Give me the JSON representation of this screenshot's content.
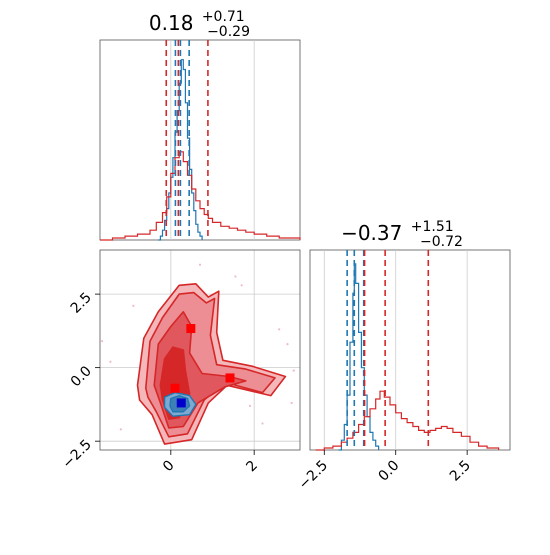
{
  "chart_data": [
    {
      "type": "histogram",
      "panel": "marginal-x",
      "title": {
        "main": "0.18",
        "sup": "+0.71",
        "sub": "−0.29"
      },
      "xlim": [
        -1.7,
        3.1
      ],
      "grid": true,
      "series": [
        {
          "color": "#1f77b4",
          "bins": [
            {
              "x": -0.3,
              "h": 0.0
            },
            {
              "x": -0.25,
              "h": 0.02
            },
            {
              "x": -0.2,
              "h": 0.05
            },
            {
              "x": -0.15,
              "h": 0.1
            },
            {
              "x": -0.1,
              "h": 0.16
            },
            {
              "x": -0.05,
              "h": 0.24
            },
            {
              "x": 0.0,
              "h": 0.32
            },
            {
              "x": 0.05,
              "h": 0.42
            },
            {
              "x": 0.1,
              "h": 0.55
            },
            {
              "x": 0.15,
              "h": 0.66
            },
            {
              "x": 0.2,
              "h": 0.8
            },
            {
              "x": 0.25,
              "h": 0.92
            },
            {
              "x": 0.3,
              "h": 0.87
            },
            {
              "x": 0.35,
              "h": 0.7
            },
            {
              "x": 0.4,
              "h": 0.52
            },
            {
              "x": 0.45,
              "h": 0.36
            },
            {
              "x": 0.5,
              "h": 0.24
            },
            {
              "x": 0.55,
              "h": 0.15
            },
            {
              "x": 0.6,
              "h": 0.08
            },
            {
              "x": 0.65,
              "h": 0.04
            },
            {
              "x": 0.7,
              "h": 0.02
            },
            {
              "x": 0.75,
              "h": 0.0
            }
          ],
          "quantiles": [
            0.11,
            0.23,
            0.44
          ]
        },
        {
          "color": "#d62728",
          "bins": [
            {
              "x": -1.7,
              "h": 0.0
            },
            {
              "x": -1.4,
              "h": 0.01
            },
            {
              "x": -1.1,
              "h": 0.02
            },
            {
              "x": -0.8,
              "h": 0.03
            },
            {
              "x": -0.5,
              "h": 0.05
            },
            {
              "x": -0.35,
              "h": 0.09
            },
            {
              "x": -0.2,
              "h": 0.14
            },
            {
              "x": -0.1,
              "h": 0.22
            },
            {
              "x": 0.0,
              "h": 0.34
            },
            {
              "x": 0.1,
              "h": 0.42
            },
            {
              "x": 0.2,
              "h": 0.45
            },
            {
              "x": 0.3,
              "h": 0.4
            },
            {
              "x": 0.4,
              "h": 0.33
            },
            {
              "x": 0.5,
              "h": 0.26
            },
            {
              "x": 0.6,
              "h": 0.2
            },
            {
              "x": 0.7,
              "h": 0.16
            },
            {
              "x": 0.8,
              "h": 0.13
            },
            {
              "x": 0.9,
              "h": 0.11
            },
            {
              "x": 1.0,
              "h": 0.09
            },
            {
              "x": 1.2,
              "h": 0.07
            },
            {
              "x": 1.4,
              "h": 0.06
            },
            {
              "x": 1.6,
              "h": 0.05
            },
            {
              "x": 1.8,
              "h": 0.04
            },
            {
              "x": 2.0,
              "h": 0.03
            },
            {
              "x": 2.3,
              "h": 0.02
            },
            {
              "x": 2.6,
              "h": 0.01
            },
            {
              "x": 3.1,
              "h": 0.0
            }
          ],
          "quantiles": [
            -0.11,
            0.18,
            0.89
          ]
        }
      ]
    },
    {
      "type": "histogram",
      "panel": "marginal-y",
      "title": {
        "main": "−0.37",
        "sup": "+1.51",
        "sub": "−0.72"
      },
      "xlim": [
        -3.0,
        4.0
      ],
      "xticks": [
        "−2.5",
        "0.0",
        "2.5"
      ],
      "xtick_values": [
        -2.5,
        0.0,
        2.5
      ],
      "grid": true,
      "series": [
        {
          "color": "#1f77b4",
          "bins": [
            {
              "x": -2.0,
              "h": 0.0
            },
            {
              "x": -1.9,
              "h": 0.05
            },
            {
              "x": -1.8,
              "h": 0.13
            },
            {
              "x": -1.7,
              "h": 0.28
            },
            {
              "x": -1.6,
              "h": 0.55
            },
            {
              "x": -1.5,
              "h": 0.8
            },
            {
              "x": -1.45,
              "h": 0.95
            },
            {
              "x": -1.4,
              "h": 0.85
            },
            {
              "x": -1.3,
              "h": 0.6
            },
            {
              "x": -1.2,
              "h": 0.42
            },
            {
              "x": -1.1,
              "h": 0.28
            },
            {
              "x": -1.0,
              "h": 0.17
            },
            {
              "x": -0.9,
              "h": 0.09
            },
            {
              "x": -0.8,
              "h": 0.05
            },
            {
              "x": -0.7,
              "h": 0.02
            },
            {
              "x": -0.6,
              "h": 0.0
            }
          ],
          "quantiles": [
            -1.7,
            -1.45,
            -1.12
          ]
        },
        {
          "color": "#d62728",
          "bins": [
            {
              "x": -2.8,
              "h": 0.0
            },
            {
              "x": -2.5,
              "h": 0.01
            },
            {
              "x": -2.2,
              "h": 0.02
            },
            {
              "x": -1.9,
              "h": 0.04
            },
            {
              "x": -1.7,
              "h": 0.06
            },
            {
              "x": -1.5,
              "h": 0.09
            },
            {
              "x": -1.3,
              "h": 0.13
            },
            {
              "x": -1.1,
              "h": 0.17
            },
            {
              "x": -0.9,
              "h": 0.21
            },
            {
              "x": -0.7,
              "h": 0.26
            },
            {
              "x": -0.55,
              "h": 0.3
            },
            {
              "x": -0.4,
              "h": 0.27
            },
            {
              "x": -0.2,
              "h": 0.23
            },
            {
              "x": 0.0,
              "h": 0.19
            },
            {
              "x": 0.2,
              "h": 0.16
            },
            {
              "x": 0.4,
              "h": 0.14
            },
            {
              "x": 0.6,
              "h": 0.12
            },
            {
              "x": 0.8,
              "h": 0.1
            },
            {
              "x": 1.0,
              "h": 0.09
            },
            {
              "x": 1.2,
              "h": 0.1
            },
            {
              "x": 1.4,
              "h": 0.11
            },
            {
              "x": 1.6,
              "h": 0.12
            },
            {
              "x": 1.8,
              "h": 0.11
            },
            {
              "x": 2.0,
              "h": 0.09
            },
            {
              "x": 2.3,
              "h": 0.07
            },
            {
              "x": 2.6,
              "h": 0.04
            },
            {
              "x": 2.9,
              "h": 0.02
            },
            {
              "x": 3.2,
              "h": 0.01
            },
            {
              "x": 3.6,
              "h": 0.0
            }
          ],
          "quantiles": [
            -1.09,
            -0.37,
            1.14
          ]
        }
      ]
    },
    {
      "type": "contour",
      "panel": "joint",
      "xlim": [
        -1.7,
        3.1
      ],
      "ylim": [
        -2.8,
        4.0
      ],
      "xticks": [
        "0",
        "2"
      ],
      "xtick_values": [
        0,
        2
      ],
      "yticks": [
        "−2.5",
        "0.0",
        "2.5"
      ],
      "ytick_values": [
        -2.5,
        0.0,
        2.5
      ],
      "grid": true,
      "red_contours": [
        [
          [
            -0.8,
            -0.6
          ],
          [
            -0.65,
            1.0
          ],
          [
            -0.3,
            1.9
          ],
          [
            0.2,
            2.8
          ],
          [
            0.6,
            2.85
          ],
          [
            0.9,
            2.4
          ],
          [
            1.15,
            2.6
          ],
          [
            1.1,
            1.2
          ],
          [
            1.25,
            0.25
          ],
          [
            1.95,
            0.05
          ],
          [
            2.75,
            -0.3
          ],
          [
            2.4,
            -0.95
          ],
          [
            1.35,
            -0.6
          ],
          [
            0.9,
            -1.2
          ],
          [
            0.5,
            -2.45
          ],
          [
            -0.15,
            -2.6
          ],
          [
            -0.45,
            -1.6
          ],
          [
            -0.75,
            -1.1
          ]
        ],
        [
          [
            -0.6,
            -0.7
          ],
          [
            -0.5,
            0.9
          ],
          [
            -0.2,
            1.7
          ],
          [
            0.2,
            2.5
          ],
          [
            0.55,
            2.55
          ],
          [
            0.85,
            2.2
          ],
          [
            1.05,
            2.35
          ],
          [
            0.95,
            1.1
          ],
          [
            1.1,
            0.1
          ],
          [
            1.8,
            -0.05
          ],
          [
            2.5,
            -0.35
          ],
          [
            2.2,
            -0.85
          ],
          [
            1.3,
            -0.5
          ],
          [
            0.8,
            -1.1
          ],
          [
            0.4,
            -2.25
          ],
          [
            -0.05,
            -2.35
          ],
          [
            -0.35,
            -1.5
          ],
          [
            -0.55,
            -1.0
          ]
        ],
        [
          [
            -0.4,
            -0.6
          ],
          [
            -0.3,
            0.8
          ],
          [
            0.0,
            1.4
          ],
          [
            0.3,
            1.9
          ],
          [
            0.5,
            1.4
          ],
          [
            0.45,
            0.5
          ],
          [
            0.75,
            -0.2
          ],
          [
            1.4,
            -0.3
          ],
          [
            1.8,
            -0.45
          ],
          [
            1.3,
            -0.65
          ],
          [
            0.65,
            -1.2
          ],
          [
            0.3,
            -2.0
          ],
          [
            -0.05,
            -2.05
          ],
          [
            -0.25,
            -1.2
          ]
        ],
        [
          [
            -0.25,
            -0.6
          ],
          [
            -0.15,
            0.3
          ],
          [
            0.05,
            0.7
          ],
          [
            0.3,
            0.6
          ],
          [
            0.35,
            -0.1
          ],
          [
            0.45,
            -0.9
          ],
          [
            0.2,
            -1.7
          ],
          [
            -0.05,
            -1.75
          ],
          [
            -0.2,
            -1.1
          ]
        ]
      ],
      "blue_contours": [
        [
          [
            -0.15,
            -1.0
          ],
          [
            0.1,
            -0.85
          ],
          [
            0.45,
            -0.95
          ],
          [
            0.6,
            -1.25
          ],
          [
            0.45,
            -1.6
          ],
          [
            0.05,
            -1.65
          ],
          [
            -0.15,
            -1.35
          ]
        ],
        [
          [
            0.0,
            -1.05
          ],
          [
            0.2,
            -0.95
          ],
          [
            0.4,
            -1.05
          ],
          [
            0.45,
            -1.3
          ],
          [
            0.3,
            -1.5
          ],
          [
            0.05,
            -1.5
          ],
          [
            -0.02,
            -1.3
          ]
        ]
      ],
      "markers": [
        {
          "x": 0.48,
          "y": 1.33,
          "color": "#ff0000"
        },
        {
          "x": 1.42,
          "y": -0.35,
          "color": "#ff0000"
        },
        {
          "x": 0.1,
          "y": -0.7,
          "color": "#ff0000"
        },
        {
          "x": 0.25,
          "y": -1.2,
          "color": "#0000cc"
        }
      ],
      "scatter": [
        [
          -1.65,
          0.9
        ],
        [
          2.9,
          -1.2
        ],
        [
          2.8,
          0.8
        ],
        [
          1.7,
          2.8
        ],
        [
          -0.9,
          2.1
        ],
        [
          2.2,
          -1.9
        ],
        [
          -1.2,
          -2.1
        ],
        [
          0.7,
          3.5
        ],
        [
          1.9,
          -1.3
        ],
        [
          2.6,
          1.3
        ],
        [
          -1.45,
          0.2
        ],
        [
          1.55,
          3.1
        ],
        [
          2.95,
          -0.1
        ]
      ],
      "colors": {
        "red": "#d62728",
        "blue": "#1f77b4",
        "grid": "#cccccc"
      }
    }
  ]
}
